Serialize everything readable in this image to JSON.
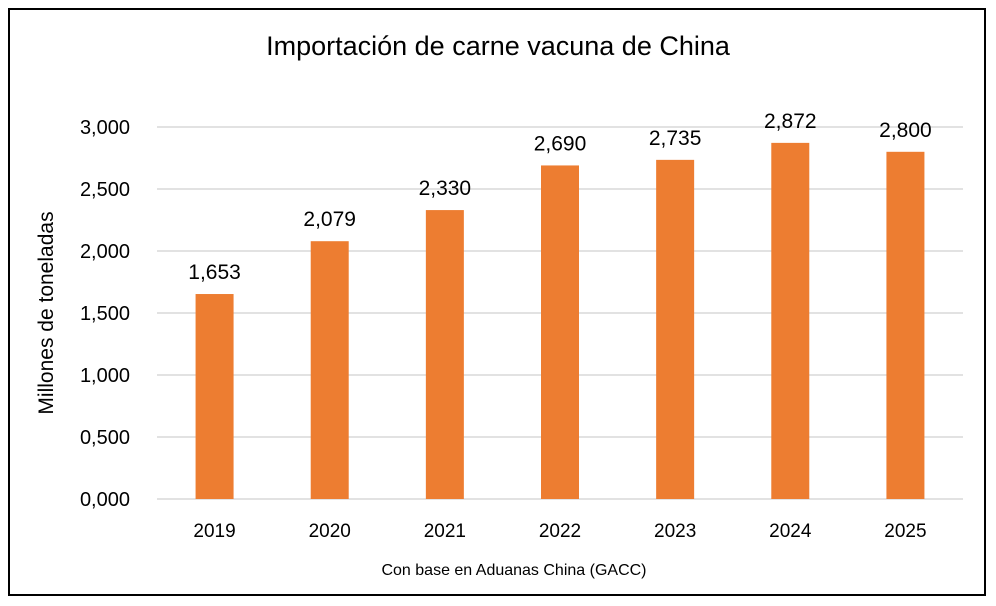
{
  "chart_data": {
    "type": "bar",
    "title": "Importación de carne vacuna de China",
    "xlabel": "Con base en Aduanas China (GACC)",
    "ylabel": "Millones de toneladas",
    "categories": [
      "2019",
      "2020",
      "2021",
      "2022",
      "2023",
      "2024",
      "2025"
    ],
    "values": [
      1.653,
      2.079,
      2.33,
      2.69,
      2.735,
      2.872,
      2.8
    ],
    "data_labels": [
      "1,653",
      "2,079",
      "2,330",
      "2,690",
      "2,735",
      "2,872",
      "2,800"
    ],
    "ylim": [
      0,
      3
    ],
    "yticks": [
      0,
      0.5,
      1,
      1.5,
      2,
      2.5,
      3
    ],
    "ytick_labels": [
      "0,000",
      "0,500",
      "1,000",
      "1,500",
      "2,000",
      "2,500",
      "3,000"
    ],
    "grid": true,
    "legend": "none",
    "bar_color": "#ED7D31",
    "grid_color": "#D9D9D9"
  }
}
